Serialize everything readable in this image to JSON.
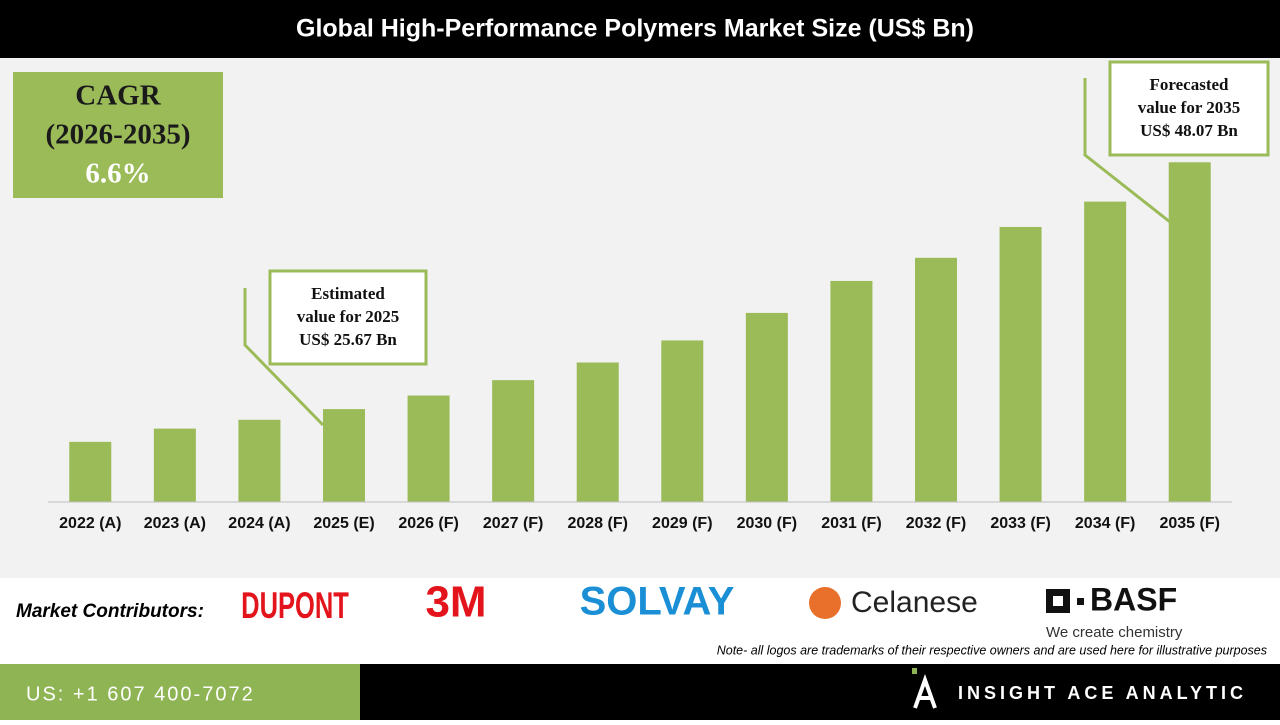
{
  "chart_data": {
    "type": "bar",
    "title": "Global High-Performance Polymers Market Size (US$ Bn)",
    "categories": [
      "2022 (A)",
      "2023 (A)",
      "2024 (A)",
      "2025 (E)",
      "2026 (F)",
      "2027 (F)",
      "2028 (F)",
      "2029 (F)",
      "2030 (F)",
      "2031 (F)",
      "2032 (F)",
      "2033 (F)",
      "2034 (F)",
      "2035 (F)"
    ],
    "values": [
      22.7,
      23.9,
      24.7,
      25.67,
      26.9,
      28.3,
      29.9,
      31.9,
      34.4,
      37.3,
      39.4,
      42.2,
      44.5,
      48.07
    ],
    "color": "#9bbb59",
    "ylim": [
      17.24,
      50
    ],
    "cagr": [
      "CAGR",
      "(2026-2035)",
      "6.6%"
    ],
    "annotations": [
      {
        "lines": [
          "Estimated",
          "value for 2025",
          "US$ 25.67 Bn"
        ]
      },
      {
        "lines": [
          "Forecasted",
          "value for 2035",
          "US$ 48.07 Bn"
        ]
      }
    ]
  },
  "footer": {
    "contributors_label": "Market Contributors:",
    "logos": [
      "DUPONT",
      "3M",
      "SOLVAY",
      "Celanese",
      "BASF",
      "We create chemistry"
    ],
    "note": "Note- all logos are trademarks of their respective owners and are used here for illustrative purposes",
    "phone": "US: +1 607 400-7072",
    "brand": "INSIGHT ACE ANALYTIC"
  }
}
